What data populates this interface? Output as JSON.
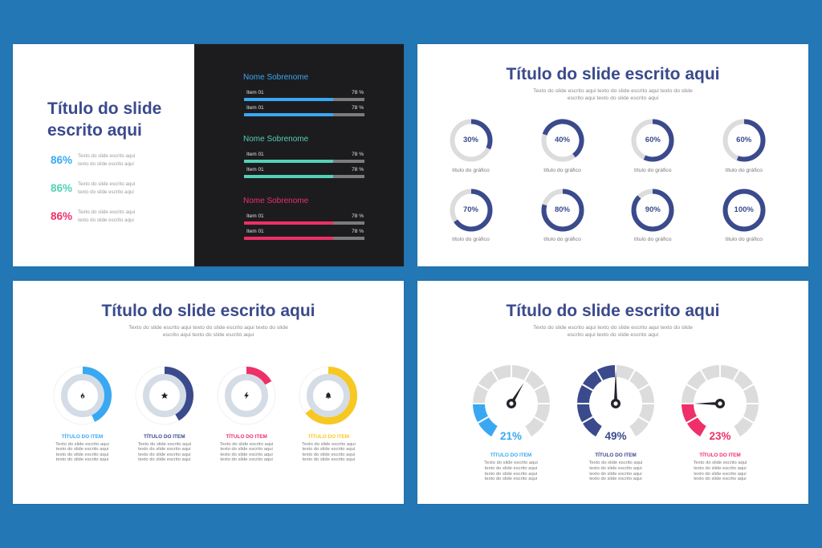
{
  "canvas": {
    "background": "#2477b5"
  },
  "palette": {
    "navy": "#3a4a8c",
    "blue": "#39a8f2",
    "teal": "#53d1b6",
    "pink": "#ee2f68",
    "yellow": "#f8c822",
    "panel_dark": "#1c1c1f",
    "bar_track": "#7c7c7c",
    "ring_track": "#dcdcdc",
    "inner_ring": "#d4dce6"
  },
  "slide1": {
    "title_lines": [
      "Título do slide",
      "escrito aqui"
    ],
    "stats": [
      {
        "value": "86%",
        "color": "#39a8f2",
        "text_lines": [
          "Texto do slide escrito aqui",
          "texto do slide escrito aqui"
        ]
      },
      {
        "value": "86%",
        "color": "#53d1b6",
        "text_lines": [
          "Texto do slide escrito aqui",
          "texto do slide escrito aqui"
        ]
      },
      {
        "value": "86%",
        "color": "#ee2f68",
        "text_lines": [
          "Texto do slide escrito aqui",
          "texto do slide escrito aqui"
        ]
      }
    ],
    "panel": {
      "groups": [
        {
          "name": "Nome Sobrenome",
          "color": "#39a8f2",
          "items": [
            {
              "label": "Item 01",
              "value": "78 %",
              "fill_pct": 74
            },
            {
              "label": "Item 01",
              "value": "78 %",
              "fill_pct": 74
            }
          ]
        },
        {
          "name": "Nome Sobrenome",
          "color": "#53d1b6",
          "items": [
            {
              "label": "Item 01",
              "value": "78 %",
              "fill_pct": 74
            },
            {
              "label": "Item 01",
              "value": "78 %",
              "fill_pct": 74
            }
          ]
        },
        {
          "name": "Nome Sobrenome",
          "color": "#ee2f68",
          "items": [
            {
              "label": "Item 01",
              "value": "78 %",
              "fill_pct": 74
            },
            {
              "label": "Item 01",
              "value": "78 %",
              "fill_pct": 74
            }
          ]
        }
      ]
    }
  },
  "slide2": {
    "title": "Título do slide escrito aqui",
    "subtitle_lines": [
      "Texto do slide escrito aqui texto do slide escrito aqui texto do slide",
      "escrito aqui texto do slide escrito aqui"
    ],
    "ring_color": "#3a4a8c",
    "track_color": "#dcdcdc",
    "rings": [
      {
        "value": "30%",
        "label": "título do gráfico",
        "arc": {
          "start": 0,
          "sweep": 115
        }
      },
      {
        "value": "40%",
        "label": "título do gráfico",
        "arc": {
          "start": -72,
          "sweep": 215
        }
      },
      {
        "value": "60%",
        "label": "título do gráfico",
        "arc": {
          "start": 0,
          "sweep": 205
        }
      },
      {
        "value": "60%",
        "label": "título do gráfico",
        "arc": {
          "start": 0,
          "sweep": 200
        }
      },
      {
        "value": "70%",
        "label": "título do gráfico",
        "arc": {
          "start": 0,
          "sweep": 235
        }
      },
      {
        "value": "80%",
        "label": "título do gráfico",
        "arc": {
          "start": 0,
          "sweep": 286
        }
      },
      {
        "value": "90%",
        "label": "título do gráfico",
        "arc": {
          "start": 0,
          "sweep": 314
        }
      },
      {
        "value": "100%",
        "label": "título do gráfico",
        "arc": {
          "start": 0,
          "sweep": 360
        }
      }
    ]
  },
  "slide3": {
    "title": "Título do slide escrito aqui",
    "subtitle_lines": [
      "Texto do slide escrito aqui texto do slide escrito aqui texto do slide",
      "escrito aqui texto do slide escrito aqui"
    ],
    "inner_ring_color": "#d4dce6",
    "outer_ring_color": "#eeeeee",
    "items": [
      {
        "icon": "flame-icon",
        "color": "#39a8f2",
        "title": "TÍTULO DO ITEM",
        "text_lines": [
          "Texto do slide escrito aqui",
          "texto do slide escrito aqui",
          "texto do slide escrito aqui",
          "texto do slide escrito aqui"
        ],
        "arc": {
          "start": 0,
          "sweep": 155
        }
      },
      {
        "icon": "star-icon",
        "color": "#3a4a8c",
        "title": "TÍTULO DO ITEM",
        "text_lines": [
          "Texto do slide escrito aqui",
          "texto do slide escrito aqui",
          "texto do slide escrito aqui",
          "texto do slide escrito aqui"
        ],
        "arc": {
          "start": 0,
          "sweep": 150
        }
      },
      {
        "icon": "bolt-icon",
        "color": "#ee2f68",
        "title": "TÍTULO DO ITEM",
        "text_lines": [
          "Texto do slide escrito aqui",
          "texto do slide escrito aqui",
          "texto do slide escrito aqui",
          "texto do slide escrito aqui"
        ],
        "arc": {
          "start": 0,
          "sweep": 60
        }
      },
      {
        "icon": "bell-icon",
        "color": "#f8c822",
        "title": "TÍTULO DO ITEM",
        "text_lines": [
          "Texto do slide escrito aqui",
          "texto do slide escrito aqui",
          "texto do slide escrito aqui",
          "texto do slide escrito aqui"
        ],
        "arc": {
          "start": 0,
          "sweep": 232
        }
      }
    ]
  },
  "slide4": {
    "title": "Título do slide escrito aqui",
    "subtitle_lines": [
      "Texto do slide escrito aqui texto do slide escrito aqui texto do slide",
      "escrito aqui texto do slide escrito aqui"
    ],
    "gauges": [
      {
        "value": "21%",
        "color": "#39a8f2",
        "title": "TÍTULO DO ITEM",
        "text_lines": [
          "Texto do slide escrito aqui",
          "texto do slide escrito aqui",
          "texto do slide escrito aqui",
          "texto do slide escrito aqui"
        ],
        "gauge": {
          "segments": 10,
          "filled_segments": 2,
          "arc_start": -150,
          "arc_end": 150,
          "color": "#39a8f2",
          "track_color": "#dcdcdc",
          "needle_angle": 31,
          "needle_length": 30
        }
      },
      {
        "value": "49%",
        "color": "#3a4a8c",
        "title": "TÍTULO DO ITEM",
        "text_lines": [
          "Texto do slide escrito aqui",
          "texto do slide escrito aqui",
          "texto do slide escrito aqui",
          "texto do slide escrito aqui"
        ],
        "gauge": {
          "segments": 10,
          "filled_segments": 5,
          "arc_start": -150,
          "arc_end": 150,
          "color": "#3a4a8c",
          "track_color": "#dcdcdc",
          "needle_angle": 0,
          "needle_length": 42
        }
      },
      {
        "value": "23%",
        "color": "#ee2f68",
        "title": "TÍTULO DO ITEM",
        "text_lines": [
          "Texto do slide escrito aqui",
          "texto do slide escrito aqui",
          "texto do slide escrito aqui",
          "texto do slide escrito aqui"
        ],
        "gauge": {
          "segments": 10,
          "filled_segments": 2,
          "arc_start": -150,
          "arc_end": 150,
          "color": "#ee2f68",
          "track_color": "#dcdcdc",
          "needle_angle": -90,
          "needle_length": 32
        }
      }
    ]
  },
  "chart_data": [
    {
      "type": "bar",
      "title": "Nome Sobrenome",
      "orientation": "horizontal",
      "categories": [
        "Item 01",
        "Item 01"
      ],
      "series": [
        {
          "name": "Nome Sobrenome (blue)",
          "values": [
            78,
            78
          ]
        },
        {
          "name": "Nome Sobrenome (teal)",
          "values": [
            78,
            78
          ]
        },
        {
          "name": "Nome Sobrenome (pink)",
          "values": [
            78,
            78
          ]
        }
      ],
      "xlim": [
        0,
        100
      ],
      "value_suffix": " %"
    },
    {
      "type": "table",
      "title": "Título do slide escrito aqui",
      "columns": [
        "value",
        "text"
      ],
      "rows": [
        [
          "86%",
          "Texto do slide escrito aqui texto do slide escrito aqui"
        ],
        [
          "86%",
          "Texto do slide escrito aqui texto do slide escrito aqui"
        ],
        [
          "86%",
          "Texto do slide escrito aqui texto do slide escrito aqui"
        ]
      ]
    },
    {
      "type": "pie",
      "variant": "progress-ring",
      "title": "Título do slide escrito aqui",
      "categories": [
        "título do gráfico",
        "título do gráfico",
        "título do gráfico",
        "título do gráfico",
        "título do gráfico",
        "título do gráfico",
        "título do gráfico",
        "título do gráfico"
      ],
      "values": [
        30,
        40,
        60,
        60,
        70,
        80,
        90,
        100
      ]
    },
    {
      "type": "pie",
      "variant": "progress-ring",
      "title": "Título do slide escrito aqui",
      "categories": [
        "TÍTULO DO ITEM",
        "TÍTULO DO ITEM",
        "TÍTULO DO ITEM",
        "TÍTULO DO ITEM"
      ],
      "values": [
        43,
        42,
        17,
        64
      ]
    },
    {
      "type": "pie",
      "variant": "gauge",
      "title": "Título do slide escrito aqui",
      "categories": [
        "TÍTULO DO ITEM",
        "TÍTULO DO ITEM",
        "TÍTULO DO ITEM"
      ],
      "values": [
        21,
        49,
        23
      ]
    }
  ]
}
